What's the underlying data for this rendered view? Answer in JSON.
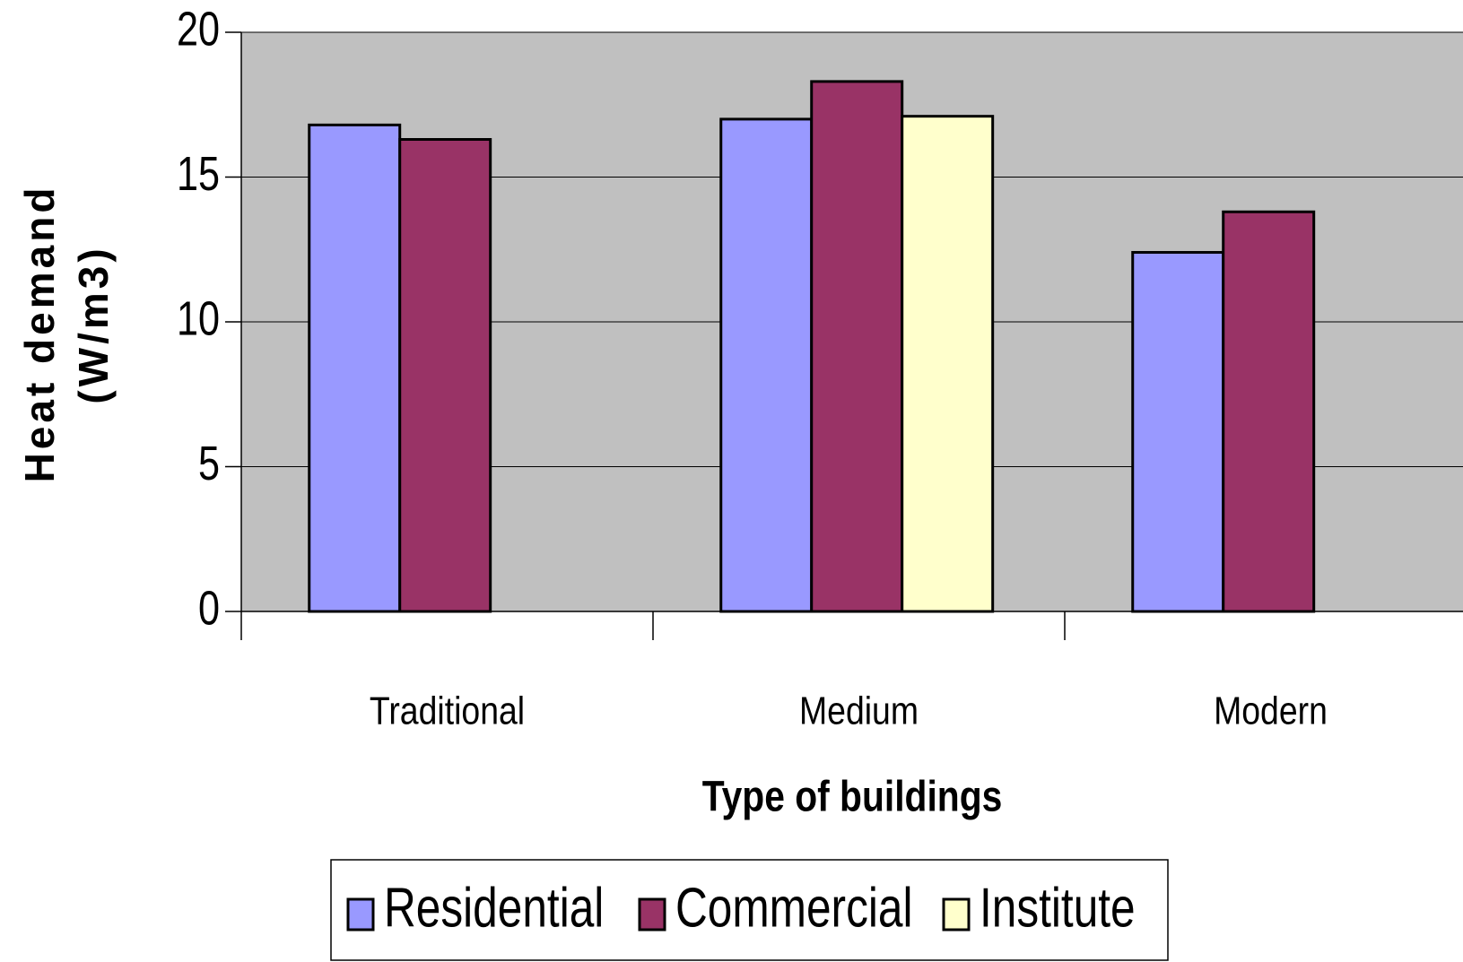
{
  "chart_data": {
    "type": "bar",
    "y_label_lines": [
      "Heat demand",
      "(W/m3)"
    ],
    "x_label": "Type of buildings",
    "categories": [
      "Traditional",
      "Medium",
      "Modern"
    ],
    "series": [
      {
        "name": "Residential",
        "color": "#9999ff",
        "values": [
          16.8,
          17.0,
          12.4
        ]
      },
      {
        "name": "Commercial",
        "color": "#993366",
        "values": [
          16.3,
          18.3,
          13.8
        ]
      },
      {
        "name": "Institute",
        "color": "#ffffcc",
        "values": [
          null,
          17.1,
          null
        ]
      }
    ],
    "ylim": [
      0,
      20
    ],
    "yticks": [
      0,
      5,
      10,
      15,
      20
    ],
    "grid": true,
    "plot_background": "#c0c0c0",
    "legend": "bottom"
  }
}
